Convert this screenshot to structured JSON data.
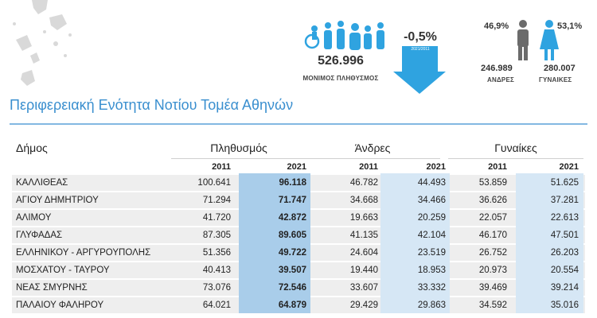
{
  "header": {
    "population_value": "526.996",
    "population_label": "ΜΟΝΙΜΟΣ ΠΛΗΘΥΣΜΟΣ",
    "change_value": "-0,5%",
    "change_period": "2021/2011",
    "male_pct": "46,9%",
    "female_pct": "53,1%",
    "male_count": "246.989",
    "female_count": "280.007",
    "male_label": "ΑΝΔΡΕΣ",
    "female_label": "ΓΥΝΑΙΚΕΣ"
  },
  "title": "Περιφερειακή Ενότητα Νοτίου Τομέα Αθηνών",
  "table": {
    "columns": [
      "Δήμος",
      "Πληθυσμός",
      "Άνδρες",
      "Γυναίκες"
    ],
    "years": [
      "2011",
      "2021",
      "2011",
      "2021",
      "2011",
      "2021"
    ],
    "rows": [
      [
        "ΚΑΛΛΙΘΕΑΣ",
        "100.641",
        "96.118",
        "46.782",
        "44.493",
        "53.859",
        "51.625"
      ],
      [
        "ΑΓΙΟΥ ΔΗΜΗΤΡΙΟΥ",
        "71.294",
        "71.747",
        "34.668",
        "34.466",
        "36.626",
        "37.281"
      ],
      [
        "ΑΛΙΜΟΥ",
        "41.720",
        "42.872",
        "19.663",
        "20.259",
        "22.057",
        "22.613"
      ],
      [
        "ΓΛΥΦΑΔΑΣ",
        "87.305",
        "89.605",
        "41.135",
        "42.104",
        "46.170",
        "47.501"
      ],
      [
        "ΕΛΛΗΝΙΚΟΥ - ΑΡΓΥΡΟΥΠΟΛΗΣ",
        "51.356",
        "49.722",
        "24.604",
        "23.519",
        "26.752",
        "26.203"
      ],
      [
        "ΜΟΣΧΑΤΟΥ - ΤΑΥΡΟΥ",
        "40.413",
        "39.507",
        "19.440",
        "18.953",
        "20.973",
        "20.554"
      ],
      [
        "ΝΕΑΣ ΣΜΥΡΝΗΣ",
        "73.076",
        "72.546",
        "33.607",
        "33.332",
        "39.469",
        "39.214"
      ],
      [
        "ΠΑΛΑΙΟΥ ΦΑΛΗΡΟΥ",
        "64.021",
        "64.879",
        "29.429",
        "29.863",
        "34.592",
        "35.016"
      ]
    ]
  }
}
